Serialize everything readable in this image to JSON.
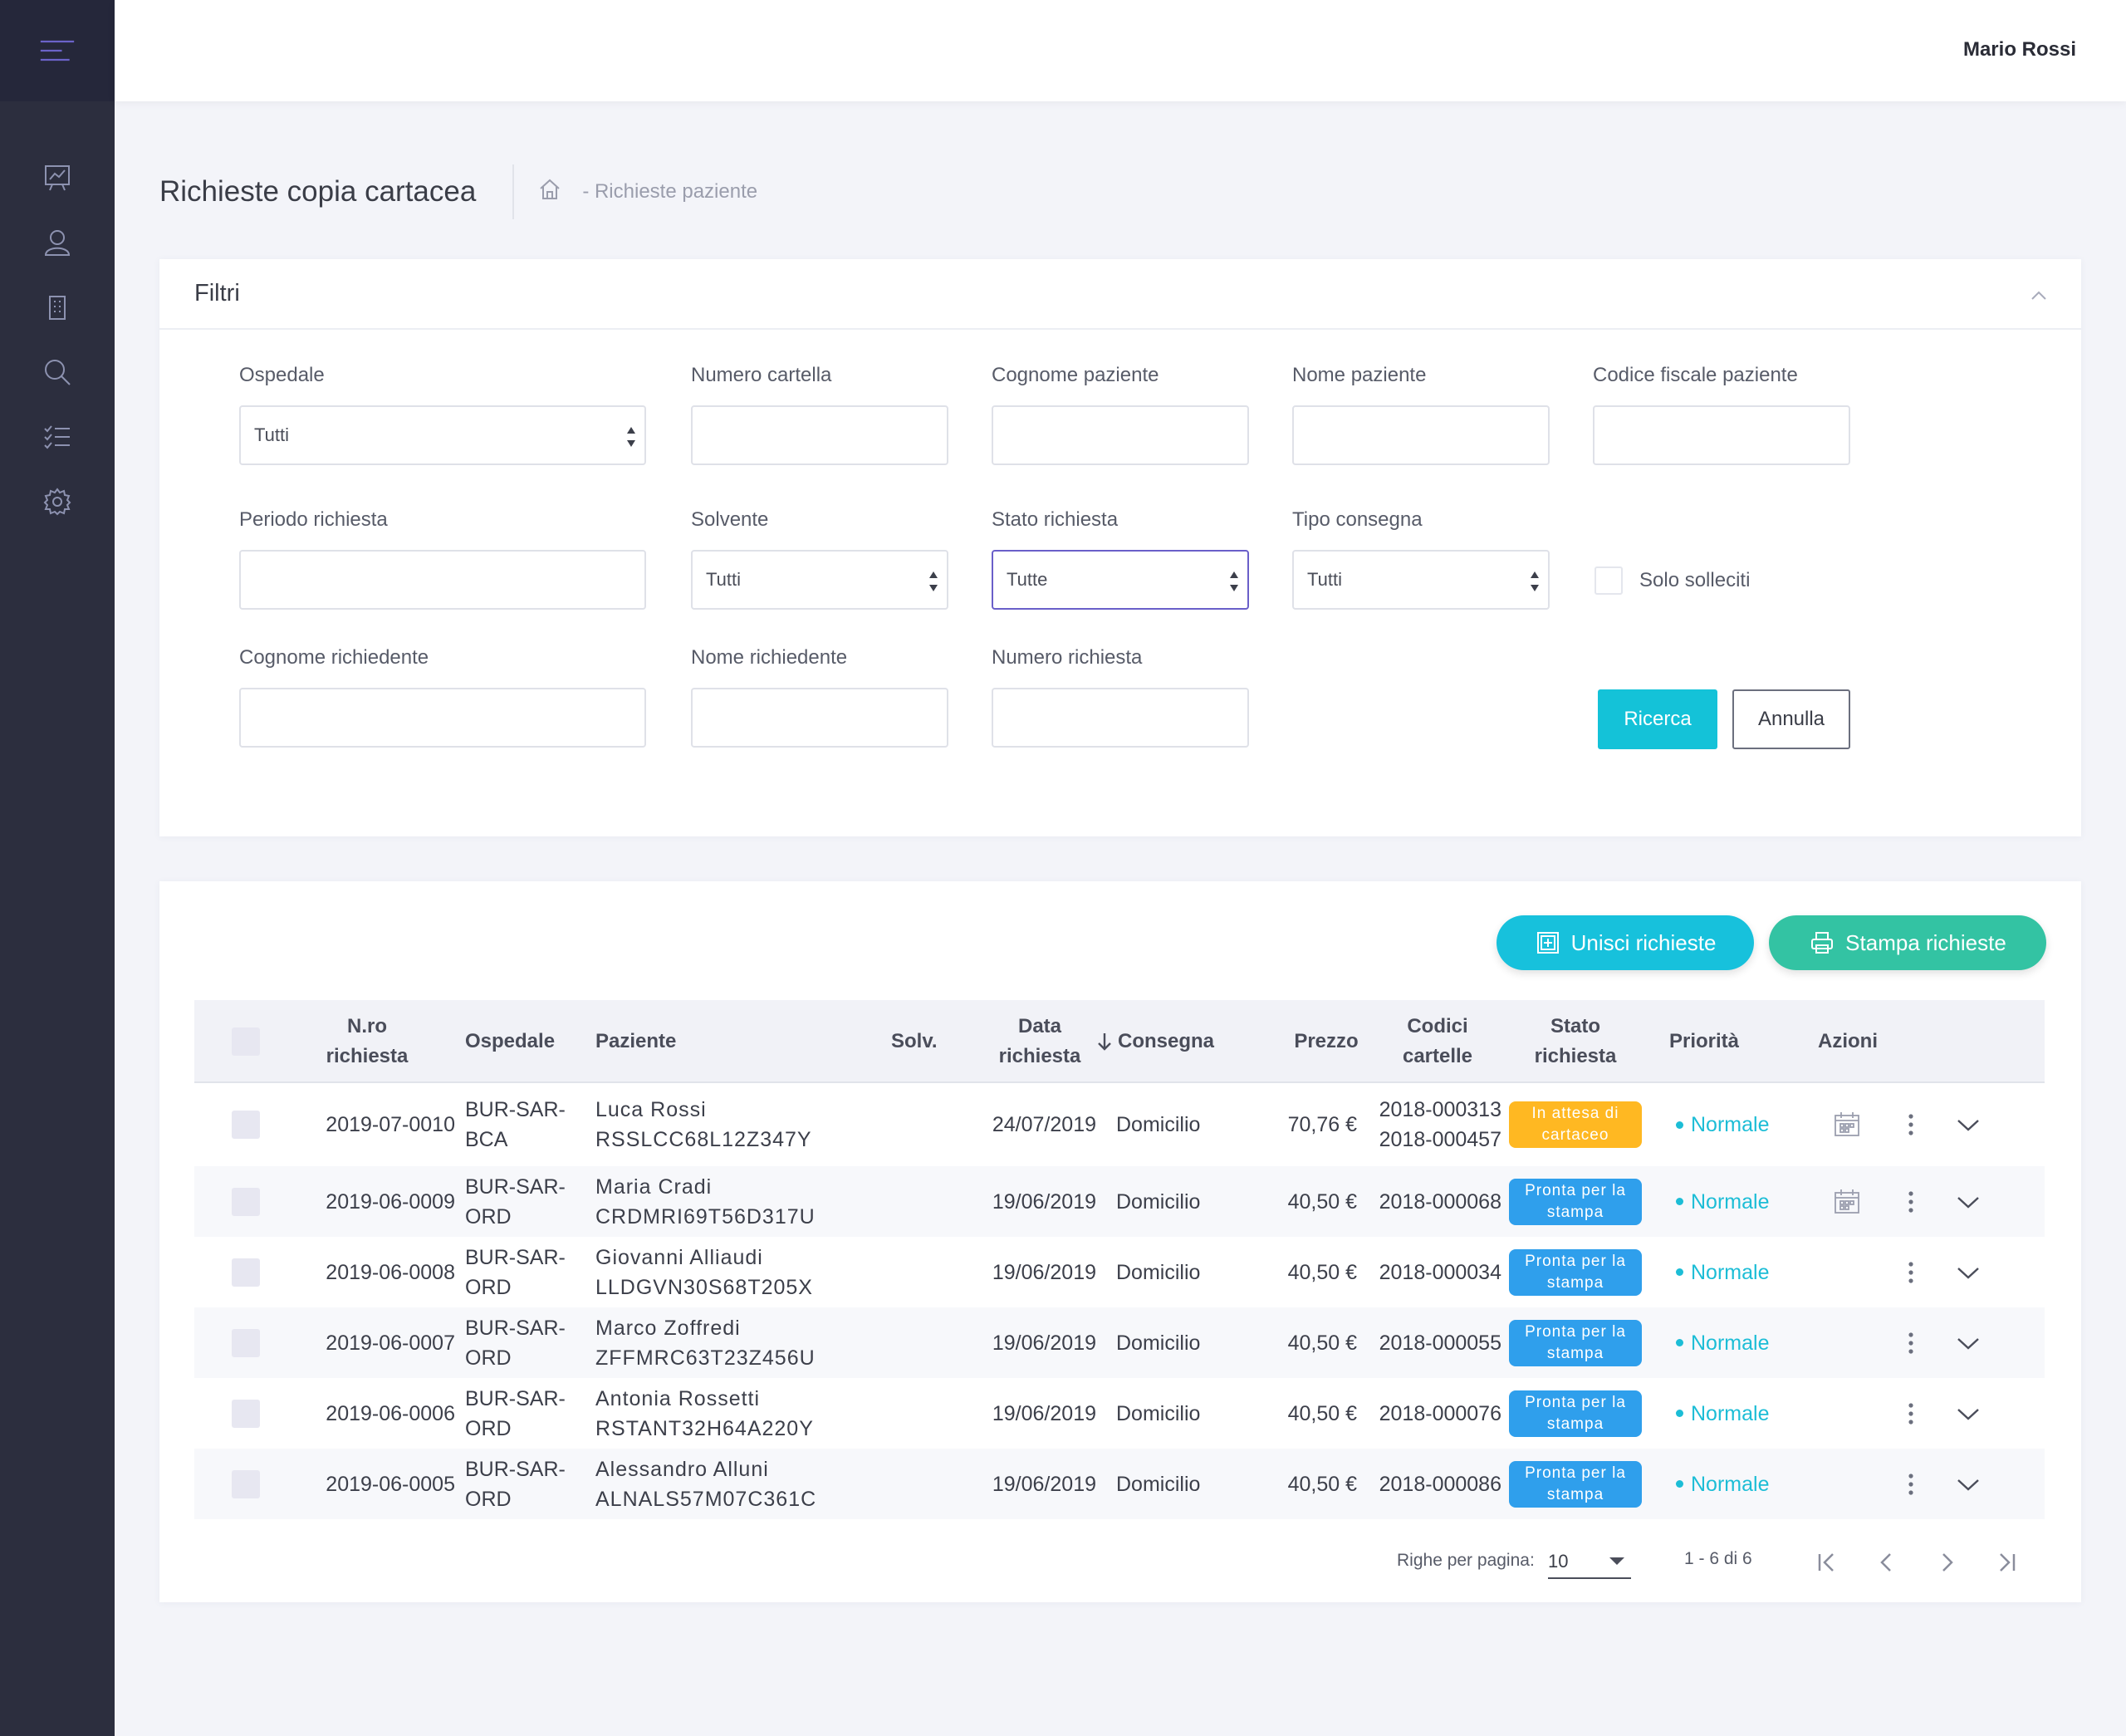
{
  "header": {
    "user_name": "Mario Rossi"
  },
  "sidebar": {
    "menu_icon": "hamburger-menu-icon",
    "items": [
      {
        "name": "dashboard",
        "icon": "chart-presentation-icon"
      },
      {
        "name": "users",
        "icon": "user-icon"
      },
      {
        "name": "hospital",
        "icon": "building-icon"
      },
      {
        "name": "search",
        "icon": "search-icon"
      },
      {
        "name": "tasks",
        "icon": "checklist-icon"
      },
      {
        "name": "settings",
        "icon": "gear-icon"
      }
    ]
  },
  "page": {
    "title": "Richieste copia cartacea",
    "breadcrumb": "- Richieste paziente"
  },
  "filters": {
    "title": "Filtri",
    "ospedale": {
      "label": "Ospedale",
      "value": "Tutti"
    },
    "numero_cartella": {
      "label": "Numero cartella",
      "value": ""
    },
    "cognome_paziente": {
      "label": "Cognome paziente",
      "value": ""
    },
    "nome_paziente": {
      "label": "Nome paziente",
      "value": ""
    },
    "codice_fiscale": {
      "label": "Codice fiscale paziente",
      "value": ""
    },
    "periodo": {
      "label": "Periodo richiesta",
      "value": ""
    },
    "solvente": {
      "label": "Solvente",
      "value": "Tutti"
    },
    "stato": {
      "label": "Stato richiesta",
      "value": "Tutte"
    },
    "tipo_consegna": {
      "label": "Tipo consegna",
      "value": "Tutti"
    },
    "solleciti": {
      "label": "Solo solleciti"
    },
    "cognome_richiedente": {
      "label": "Cognome richiedente",
      "value": ""
    },
    "nome_richiedente": {
      "label": "Nome richiedente",
      "value": ""
    },
    "numero_richiesta": {
      "label": "Numero richiesta",
      "value": ""
    },
    "search_label": "Ricerca",
    "cancel_label": "Annulla"
  },
  "actions": {
    "merge_label": "Unisci richieste",
    "print_label": "Stampa richieste"
  },
  "table": {
    "headers": {
      "numero": "N.ro richiesta",
      "ospedale": "Ospedale",
      "paziente": "Paziente",
      "solv": "Solv.",
      "data": "Data richiesta",
      "consegna": "Consegna",
      "prezzo": "Prezzo",
      "codici": "Codici cartelle",
      "stato": "Stato richiesta",
      "priorita": "Priorità",
      "azioni": "Azioni"
    },
    "rows": [
      {
        "numero": "2019-07-0010",
        "osp1": "BUR-SAR-",
        "osp2": "BCA",
        "nome": "Luca Rossi",
        "cf": "RSSLCC68L12Z347Y",
        "data": "24/07/2019",
        "consegna": "Domicilio",
        "prezzo": "70,76 €",
        "cod1": "2018-000313",
        "cod2": "2018-000457",
        "stato1": "In attesa di",
        "stato2": "cartaceo",
        "priorita": "Normale"
      },
      {
        "numero": "2019-06-0009",
        "osp1": "BUR-SAR-",
        "osp2": "ORD",
        "nome": "Maria Cradi",
        "cf": "CRDMRI69T56D317U",
        "data": "19/06/2019",
        "consegna": "Domicilio",
        "prezzo": "40,50 €",
        "cod1": "2018-000068",
        "stato1": "Pronta per la",
        "stato2": "stampa",
        "priorita": "Normale"
      },
      {
        "numero": "2019-06-0008",
        "osp1": "BUR-SAR-",
        "osp2": "ORD",
        "nome": "Giovanni Alliaudi",
        "cf": "LLDGVN30S68T205X",
        "data": "19/06/2019",
        "consegna": "Domicilio",
        "prezzo": "40,50 €",
        "cod1": "2018-000034",
        "stato1": "Pronta per la",
        "stato2": "stampa",
        "priorita": "Normale"
      },
      {
        "numero": "2019-06-0007",
        "osp1": "BUR-SAR-",
        "osp2": "ORD",
        "nome": "Marco Zoffredi",
        "cf": "ZFFMRC63T23Z456U",
        "data": "19/06/2019",
        "consegna": "Domicilio",
        "prezzo": "40,50 €",
        "cod1": "2018-000055",
        "stato1": "Pronta per la",
        "stato2": "stampa",
        "priorita": "Normale"
      },
      {
        "numero": "2019-06-0006",
        "osp1": "BUR-SAR-",
        "osp2": "ORD",
        "nome": "Antonia Rossetti",
        "cf": "RSTANT32H64A220Y",
        "data": "19/06/2019",
        "consegna": "Domicilio",
        "prezzo": "40,50 €",
        "cod1": "2018-000076",
        "stato1": "Pronta per la",
        "stato2": "stampa",
        "priorita": "Normale"
      },
      {
        "numero": "2019-06-0005",
        "osp1": "BUR-SAR-",
        "osp2": "ORD",
        "nome": "Alessandro Alluni",
        "cf": "ALNALS57M07C361C",
        "data": "19/06/2019",
        "consegna": "Domicilio",
        "prezzo": "40,50 €",
        "cod1": "2018-000086",
        "stato1": "Pronta per la",
        "stato2": "stampa",
        "priorita": "Normale"
      }
    ]
  },
  "pagination": {
    "rows_label": "Righe per pagina:",
    "rows_value": "10",
    "range": "1 - 6 di 6"
  }
}
